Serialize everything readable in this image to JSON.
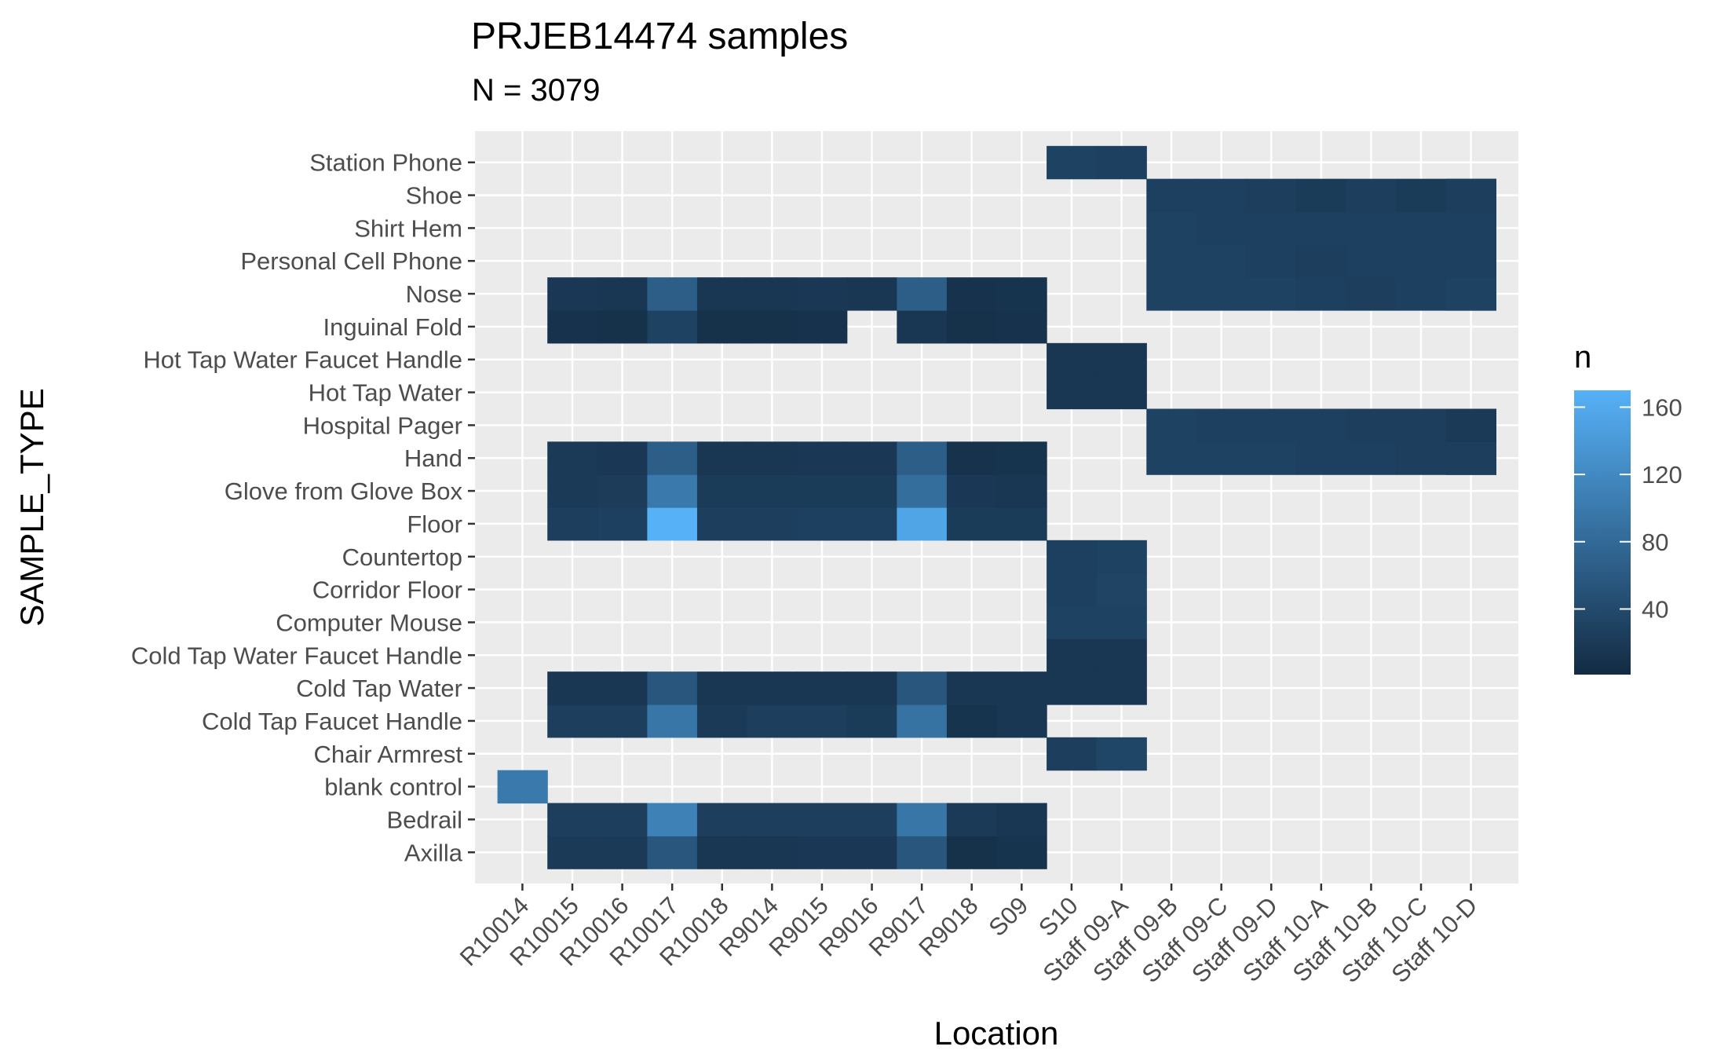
{
  "chart_data": {
    "type": "heatmap",
    "title": "PRJEB14474 samples",
    "subtitle": "N = 3079",
    "xlabel": "Location",
    "ylabel": "SAMPLE_TYPE",
    "legend_title": "n",
    "legend_placement": "right",
    "grid": true,
    "color_scale": {
      "low": "#132B43",
      "high": "#56B1F7",
      "min": 1,
      "max": 170,
      "breaks": [
        40,
        80,
        120,
        160
      ]
    },
    "x": [
      "R10014",
      "R10015",
      "R10016",
      "R10017",
      "R10018",
      "R9014",
      "R9015",
      "R9016",
      "R9017",
      "R9018",
      "S09",
      "S10",
      "Staff 09-A",
      "Staff 09-B",
      "Staff 09-C",
      "Staff 09-D",
      "Staff 10-A",
      "Staff 10-B",
      "Staff 10-C",
      "Staff 10-D"
    ],
    "y": [
      "Axilla",
      "Bedrail",
      "blank control",
      "Chair Armrest",
      "Cold Tap Faucet Handle",
      "Cold Tap Water",
      "Cold Tap Water Faucet Handle",
      "Computer Mouse",
      "Corridor Floor",
      "Countertop",
      "Floor",
      "Glove from Glove Box",
      "Hand",
      "Hospital Pager",
      "Hot Tap Water",
      "Hot Tap Water Faucet Handle",
      "Inguinal Fold",
      "Nose",
      "Personal Cell Phone",
      "Shirt Hem",
      "Shoe",
      "Station Phone"
    ],
    "cells": [
      [
        "R10015",
        "Axilla",
        20
      ],
      [
        "R10016",
        "Axilla",
        20
      ],
      [
        "R10017",
        "Axilla",
        55
      ],
      [
        "R10018",
        "Axilla",
        15
      ],
      [
        "R9014",
        "Axilla",
        15
      ],
      [
        "R9015",
        "Axilla",
        18
      ],
      [
        "R9016",
        "Axilla",
        18
      ],
      [
        "R9017",
        "Axilla",
        55
      ],
      [
        "R9018",
        "Axilla",
        8
      ],
      [
        "S09",
        "Axilla",
        12
      ],
      [
        "R10015",
        "Bedrail",
        25
      ],
      [
        "R10016",
        "Bedrail",
        25
      ],
      [
        "R10017",
        "Bedrail",
        110
      ],
      [
        "R10018",
        "Bedrail",
        25
      ],
      [
        "R9014",
        "Bedrail",
        25
      ],
      [
        "R9015",
        "Bedrail",
        25
      ],
      [
        "R9016",
        "Bedrail",
        25
      ],
      [
        "R9017",
        "Bedrail",
        95
      ],
      [
        "R9018",
        "Bedrail",
        20
      ],
      [
        "S09",
        "Bedrail",
        15
      ],
      [
        "R10014",
        "blank control",
        100
      ],
      [
        "S10",
        "Chair Armrest",
        25
      ],
      [
        "Staff 09-A",
        "Chair Armrest",
        35
      ],
      [
        "R10015",
        "Cold Tap Faucet Handle",
        25
      ],
      [
        "R10016",
        "Cold Tap Faucet Handle",
        25
      ],
      [
        "R10017",
        "Cold Tap Faucet Handle",
        95
      ],
      [
        "R10018",
        "Cold Tap Faucet Handle",
        20
      ],
      [
        "R9014",
        "Cold Tap Faucet Handle",
        25
      ],
      [
        "R9015",
        "Cold Tap Faucet Handle",
        25
      ],
      [
        "R9016",
        "Cold Tap Faucet Handle",
        22
      ],
      [
        "R9017",
        "Cold Tap Faucet Handle",
        90
      ],
      [
        "R9018",
        "Cold Tap Faucet Handle",
        12
      ],
      [
        "S09",
        "Cold Tap Faucet Handle",
        15
      ],
      [
        "R10015",
        "Cold Tap Water",
        15
      ],
      [
        "R10016",
        "Cold Tap Water",
        15
      ],
      [
        "R10017",
        "Cold Tap Water",
        55
      ],
      [
        "R10018",
        "Cold Tap Water",
        15
      ],
      [
        "R9014",
        "Cold Tap Water",
        15
      ],
      [
        "R9015",
        "Cold Tap Water",
        15
      ],
      [
        "R9016",
        "Cold Tap Water",
        15
      ],
      [
        "R9017",
        "Cold Tap Water",
        55
      ],
      [
        "R9018",
        "Cold Tap Water",
        15
      ],
      [
        "S09",
        "Cold Tap Water",
        15
      ],
      [
        "S10",
        "Cold Tap Water",
        15
      ],
      [
        "Staff 09-A",
        "Cold Tap Water",
        15
      ],
      [
        "S10",
        "Cold Tap Water Faucet Handle",
        15
      ],
      [
        "Staff 09-A",
        "Cold Tap Water Faucet Handle",
        15
      ],
      [
        "S10",
        "Computer Mouse",
        30
      ],
      [
        "Staff 09-A",
        "Computer Mouse",
        30
      ],
      [
        "S10",
        "Corridor Floor",
        28
      ],
      [
        "Staff 09-A",
        "Corridor Floor",
        32
      ],
      [
        "S10",
        "Countertop",
        28
      ],
      [
        "Staff 09-A",
        "Countertop",
        30
      ],
      [
        "R10015",
        "Floor",
        25
      ],
      [
        "R10016",
        "Floor",
        28
      ],
      [
        "R10017",
        "Floor",
        170
      ],
      [
        "R10018",
        "Floor",
        25
      ],
      [
        "R9014",
        "Floor",
        25
      ],
      [
        "R9015",
        "Floor",
        28
      ],
      [
        "R9016",
        "Floor",
        28
      ],
      [
        "R9017",
        "Floor",
        155
      ],
      [
        "R9018",
        "Floor",
        22
      ],
      [
        "S09",
        "Floor",
        22
      ],
      [
        "R10015",
        "Glove from Glove Box",
        20
      ],
      [
        "R10016",
        "Glove from Glove Box",
        23
      ],
      [
        "R10017",
        "Glove from Glove Box",
        100
      ],
      [
        "R10018",
        "Glove from Glove Box",
        22
      ],
      [
        "R9014",
        "Glove from Glove Box",
        22
      ],
      [
        "R9015",
        "Glove from Glove Box",
        22
      ],
      [
        "R9016",
        "Glove from Glove Box",
        22
      ],
      [
        "R9017",
        "Glove from Glove Box",
        85
      ],
      [
        "R9018",
        "Glove from Glove Box",
        18
      ],
      [
        "S09",
        "Glove from Glove Box",
        15
      ],
      [
        "R10015",
        "Hand",
        20
      ],
      [
        "R10016",
        "Hand",
        18
      ],
      [
        "R10017",
        "Hand",
        65
      ],
      [
        "R10018",
        "Hand",
        15
      ],
      [
        "R9014",
        "Hand",
        15
      ],
      [
        "R9015",
        "Hand",
        18
      ],
      [
        "R9016",
        "Hand",
        18
      ],
      [
        "R9017",
        "Hand",
        65
      ],
      [
        "R9018",
        "Hand",
        10
      ],
      [
        "S09",
        "Hand",
        12
      ],
      [
        "Staff 09-B",
        "Hand",
        30
      ],
      [
        "Staff 09-C",
        "Hand",
        30
      ],
      [
        "Staff 09-D",
        "Hand",
        30
      ],
      [
        "Staff 10-A",
        "Hand",
        28
      ],
      [
        "Staff 10-B",
        "Hand",
        28
      ],
      [
        "Staff 10-C",
        "Hand",
        25
      ],
      [
        "Staff 10-D",
        "Hand",
        28
      ],
      [
        "Staff 10-D",
        "Hand",
        25
      ],
      [
        "Staff 09-B",
        "Hospital Pager",
        30
      ],
      [
        "Staff 09-C",
        "Hospital Pager",
        28
      ],
      [
        "Staff 09-D",
        "Hospital Pager",
        28
      ],
      [
        "Staff 10-A",
        "Hospital Pager",
        28
      ],
      [
        "Staff 10-B",
        "Hospital Pager",
        25
      ],
      [
        "Staff 10-C",
        "Hospital Pager",
        25
      ],
      [
        "Staff 10-D",
        "Hospital Pager",
        28
      ],
      [
        "Staff 10-D",
        "Hospital Pager",
        20
      ],
      [
        "S10",
        "Hot Tap Water",
        15
      ],
      [
        "Staff 09-A",
        "Hot Tap Water",
        15
      ],
      [
        "S10",
        "Hot Tap Water Faucet Handle",
        15
      ],
      [
        "Staff 09-A",
        "Hot Tap Water Faucet Handle",
        15
      ],
      [
        "R10015",
        "Inguinal Fold",
        10
      ],
      [
        "R10016",
        "Inguinal Fold",
        8
      ],
      [
        "R10017",
        "Inguinal Fold",
        30
      ],
      [
        "R10018",
        "Inguinal Fold",
        8
      ],
      [
        "R9014",
        "Inguinal Fold",
        8
      ],
      [
        "R9015",
        "Inguinal Fold",
        10
      ],
      [
        "R9017",
        "Inguinal Fold",
        15
      ],
      [
        "R9018",
        "Inguinal Fold",
        8
      ],
      [
        "S09",
        "Inguinal Fold",
        10
      ],
      [
        "R10015",
        "Nose",
        18
      ],
      [
        "R10016",
        "Nose",
        15
      ],
      [
        "R10017",
        "Nose",
        65
      ],
      [
        "R10018",
        "Nose",
        15
      ],
      [
        "R9014",
        "Nose",
        15
      ],
      [
        "R9015",
        "Nose",
        18
      ],
      [
        "R9016",
        "Nose",
        15
      ],
      [
        "R9017",
        "Nose",
        65
      ],
      [
        "R9018",
        "Nose",
        10
      ],
      [
        "S09",
        "Nose",
        12
      ],
      [
        "Staff 09-B",
        "Nose",
        30
      ],
      [
        "Staff 09-C",
        "Nose",
        30
      ],
      [
        "Staff 09-D",
        "Nose",
        30
      ],
      [
        "Staff 10-A",
        "Nose",
        28
      ],
      [
        "Staff 10-B",
        "Nose",
        25
      ],
      [
        "Staff 10-C",
        "Nose",
        28
      ],
      [
        "Staff 10-D",
        "Nose",
        28
      ],
      [
        "Staff 10-D",
        "Nose",
        30
      ],
      [
        "Staff 09-B",
        "Personal Cell Phone",
        30
      ],
      [
        "Staff 09-C",
        "Personal Cell Phone",
        30
      ],
      [
        "Staff 09-D",
        "Personal Cell Phone",
        28
      ],
      [
        "Staff 10-A",
        "Personal Cell Phone",
        25
      ],
      [
        "Staff 10-B",
        "Personal Cell Phone",
        28
      ],
      [
        "Staff 10-C",
        "Personal Cell Phone",
        28
      ],
      [
        "Staff 10-D",
        "Personal Cell Phone",
        28
      ],
      [
        "Staff 10-D",
        "Personal Cell Phone",
        28
      ],
      [
        "Staff 09-B",
        "Shirt Hem",
        30
      ],
      [
        "Staff 09-C",
        "Shirt Hem",
        28
      ],
      [
        "Staff 09-D",
        "Shirt Hem",
        28
      ],
      [
        "Staff 10-A",
        "Shirt Hem",
        28
      ],
      [
        "Staff 10-B",
        "Shirt Hem",
        28
      ],
      [
        "Staff 10-C",
        "Shirt Hem",
        28
      ],
      [
        "Staff 10-D",
        "Shirt Hem",
        28
      ],
      [
        "Staff 10-D",
        "Shirt Hem",
        28
      ],
      [
        "Staff 09-B",
        "Shoe",
        28
      ],
      [
        "Staff 09-C",
        "Shoe",
        28
      ],
      [
        "Staff 09-D",
        "Shoe",
        25
      ],
      [
        "Staff 10-A",
        "Shoe",
        22
      ],
      [
        "Staff 10-B",
        "Shoe",
        25
      ],
      [
        "Staff 10-C",
        "Shoe",
        22
      ],
      [
        "Staff 10-D",
        "Shoe",
        25
      ],
      [
        "Staff 10-D",
        "Shoe",
        25
      ],
      [
        "S10",
        "Station Phone",
        30
      ],
      [
        "Staff 09-A",
        "Station Phone",
        28
      ]
    ]
  }
}
